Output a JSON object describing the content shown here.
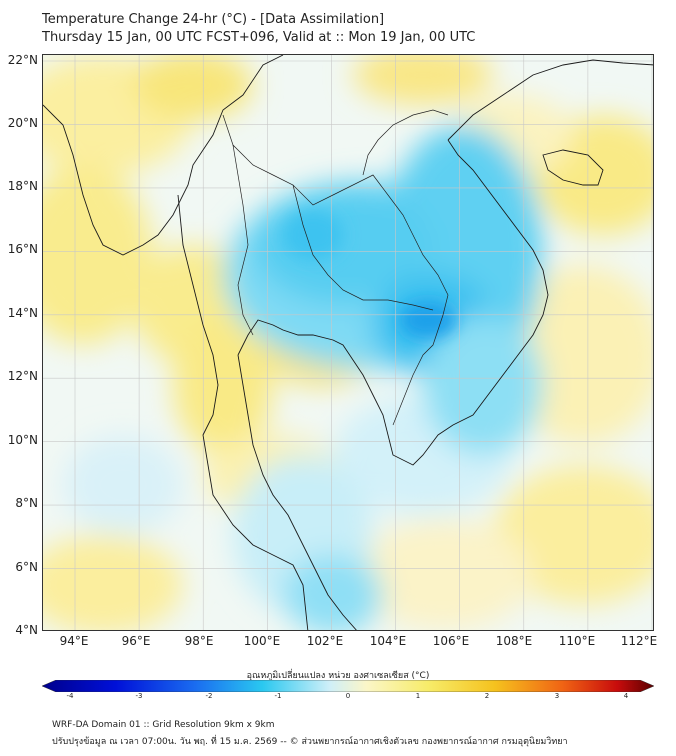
{
  "header": {
    "title_line1": "Temperature Change 24-hr (°C) - [Data Assimilation]",
    "title_line2": "Thursday 15 Jan, 00 UTC FCST+096, Valid at :: Mon 19 Jan, 00 UTC"
  },
  "map": {
    "lat_labels": [
      "22°N",
      "20°N",
      "18°N",
      "16°N",
      "14°N",
      "12°N",
      "10°N",
      "8°N",
      "6°N",
      "4°N"
    ],
    "lon_labels": [
      "94°E",
      "96°E",
      "98°E",
      "100°E",
      "102°E",
      "104°E",
      "106°E",
      "108°E",
      "110°E",
      "112°E"
    ],
    "region": "Southeast Asia - Indochina peninsula",
    "field_description": "24-hr temperature change, cooling (blue) over Thailand, Laos, Cambodia; warming (yellow) over Myanmar coast, Gulf of Thailand and seas"
  },
  "colorbar": {
    "label": "อุณหภูมิเปลี่ยนแปลง หน่วย องศาเซลเซียส (°C)",
    "ticks": [
      "-4",
      "-3",
      "-2",
      "-1",
      "0",
      "1",
      "2",
      "3",
      "4"
    ],
    "colors": [
      "#00008c",
      "#0000d0",
      "#0a3cf0",
      "#1a8cf5",
      "#2ac8f0",
      "#7fe3f5",
      "#dff6fa",
      "#fbf6c8",
      "#f7ec6a",
      "#f5d21e",
      "#f5a414",
      "#f06414",
      "#e01e10",
      "#a00000",
      "#5a0000"
    ]
  },
  "footer": {
    "line1": "WRF-DA Domain 01 :: Grid Resolution 9km x 9km",
    "line2": "ปรับปรุงข้อมูล ณ เวลา 07:00น. วัน พฤ. ที่ 15 ม.ค. 2569 -- © ส่วนพยากรณ์อากาศเชิงตัวเลข กองพยากรณ์อากาศ กรมอุตุนิยมวิทยา"
  }
}
